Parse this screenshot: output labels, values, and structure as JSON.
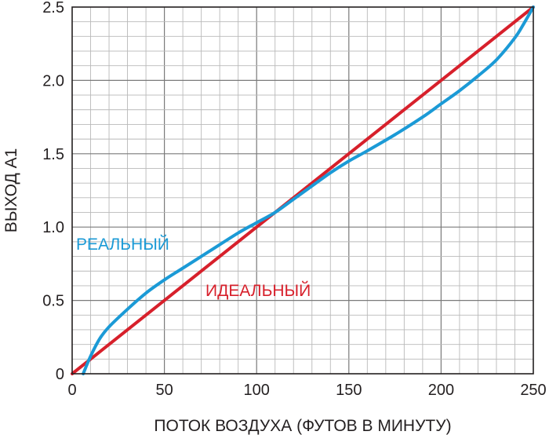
{
  "chart_data": {
    "type": "line",
    "title": "",
    "xlabel": "ПОТОК ВОЗДУХА (ФУТОВ В МИНУТУ)",
    "ylabel": "ВЫХОД А1",
    "xlim": [
      0,
      250
    ],
    "ylim": [
      0,
      2.5
    ],
    "x_ticks": [
      0,
      50,
      100,
      150,
      200,
      250
    ],
    "x_tick_labels": [
      "0",
      "50",
      "100",
      "150",
      "200",
      "250"
    ],
    "y_ticks": [
      0,
      0.5,
      1.0,
      1.5,
      2.0,
      2.5
    ],
    "y_tick_labels": [
      "0",
      "0.5",
      "1.0",
      "1.5",
      "2.0",
      "2.5"
    ],
    "grid": true,
    "legend": "inline labels",
    "series": [
      {
        "name": "РЕАЛЬНЫЙ",
        "color": "#1b9ad6",
        "x": [
          6,
          10,
          15,
          20,
          30,
          40,
          50,
          60,
          75,
          90,
          100,
          110,
          120,
          130,
          140,
          150,
          160,
          175,
          190,
          200,
          210,
          220,
          230,
          240,
          245,
          250
        ],
        "y": [
          0.0,
          0.12,
          0.24,
          0.32,
          0.44,
          0.55,
          0.64,
          0.72,
          0.84,
          0.96,
          1.03,
          1.1,
          1.19,
          1.28,
          1.37,
          1.45,
          1.52,
          1.63,
          1.75,
          1.84,
          1.93,
          2.03,
          2.14,
          2.29,
          2.39,
          2.5
        ]
      },
      {
        "name": "ИДЕАЛЬНЫЙ",
        "color": "#d7202b",
        "x": [
          0,
          250
        ],
        "y": [
          0.0,
          2.5
        ]
      }
    ],
    "annotations": [
      {
        "text": "РЕАЛЬНЫЙ",
        "color": "#1b9ad6"
      },
      {
        "text": "ИДЕАЛЬНЫЙ",
        "color": "#d7202b"
      }
    ]
  }
}
